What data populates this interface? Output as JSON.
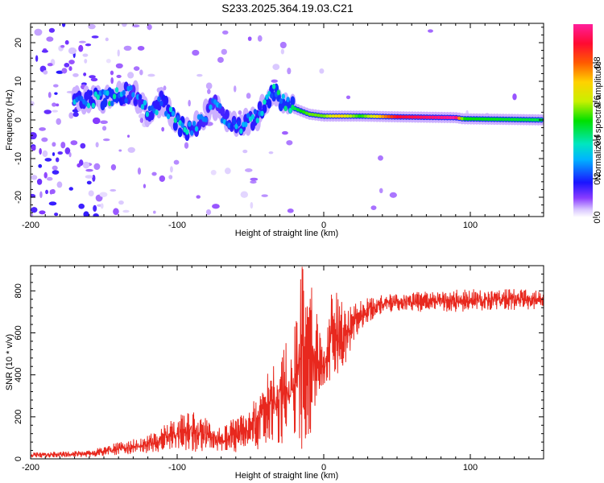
{
  "title": "S233.2025.364.19.03.C21",
  "chart_data": [
    {
      "type": "heatmap",
      "title": "S233.2025.364.19.03.C21",
      "xlabel": "Height of straight line (km)",
      "ylabel": "Frequency (Hz)",
      "xlim": [
        -200,
        150
      ],
      "ylim": [
        -25,
        25
      ],
      "xticks": [
        -200,
        -100,
        0,
        100
      ],
      "yticks": [
        20,
        10,
        0,
        -10,
        -20
      ],
      "colorbar": {
        "label": "Normalized spectral amplitude",
        "range": [
          0,
          1
        ],
        "ticks": [
          "0.0",
          "0.2",
          "0.4",
          "0.6",
          "0.8"
        ]
      },
      "ridge": [
        {
          "x": -160,
          "f": 5,
          "amp": 0.3
        },
        {
          "x": -145,
          "f": 6,
          "amp": 0.4
        },
        {
          "x": -130,
          "f": 7,
          "amp": 0.25
        },
        {
          "x": -120,
          "f": 2,
          "amp": 0.3
        },
        {
          "x": -110,
          "f": 5,
          "amp": 0.3
        },
        {
          "x": -100,
          "f": -1,
          "amp": 0.35
        },
        {
          "x": -90,
          "f": -3,
          "amp": 0.3
        },
        {
          "x": -75,
          "f": 4,
          "amp": 0.25
        },
        {
          "x": -60,
          "f": -2,
          "amp": 0.3
        },
        {
          "x": -45,
          "f": 1,
          "amp": 0.3
        },
        {
          "x": -35,
          "f": 7,
          "amp": 0.35
        },
        {
          "x": -20,
          "f": 3,
          "amp": 0.45
        },
        {
          "x": -10,
          "f": 1.5,
          "amp": 0.55
        },
        {
          "x": 0,
          "f": 1,
          "amp": 0.55
        },
        {
          "x": 10,
          "f": 1,
          "amp": 0.7
        },
        {
          "x": 25,
          "f": 1,
          "amp": 0.5
        },
        {
          "x": 50,
          "f": 0.8,
          "amp": 0.9
        },
        {
          "x": 90,
          "f": 0.6,
          "amp": 1.0
        },
        {
          "x": 95,
          "f": 0.3,
          "amp": 0.5
        },
        {
          "x": 150,
          "f": 0,
          "amp": 0.45
        }
      ]
    },
    {
      "type": "line",
      "xlabel": "Height of straight line (km)",
      "ylabel": "SNR (10 * v/v)",
      "xlim": [
        -200,
        150
      ],
      "ylim": [
        0,
        920
      ],
      "xticks": [
        -200,
        -100,
        0,
        100
      ],
      "yticks": [
        0,
        200,
        400,
        600,
        800
      ],
      "series": [
        {
          "name": "SNR",
          "color": "#e8281e",
          "envelope_x": [
            -200,
            -160,
            -140,
            -120,
            -100,
            -90,
            -80,
            -70,
            -60,
            -50,
            -40,
            -30,
            -20,
            -15,
            -10,
            -5,
            0,
            5,
            10,
            15,
            20,
            30,
            40,
            50,
            80,
            100,
            150
          ],
          "envelope_lo": [
            5,
            8,
            15,
            25,
            40,
            30,
            20,
            20,
            25,
            30,
            40,
            60,
            80,
            30,
            50,
            300,
            350,
            350,
            380,
            450,
            550,
            650,
            690,
            700,
            700,
            700,
            710
          ],
          "envelope_hi": [
            30,
            40,
            80,
            110,
            200,
            240,
            200,
            150,
            200,
            260,
            400,
            500,
            650,
            920,
            880,
            700,
            500,
            800,
            800,
            700,
            750,
            770,
            780,
            790,
            800,
            810,
            810
          ]
        }
      ]
    }
  ]
}
